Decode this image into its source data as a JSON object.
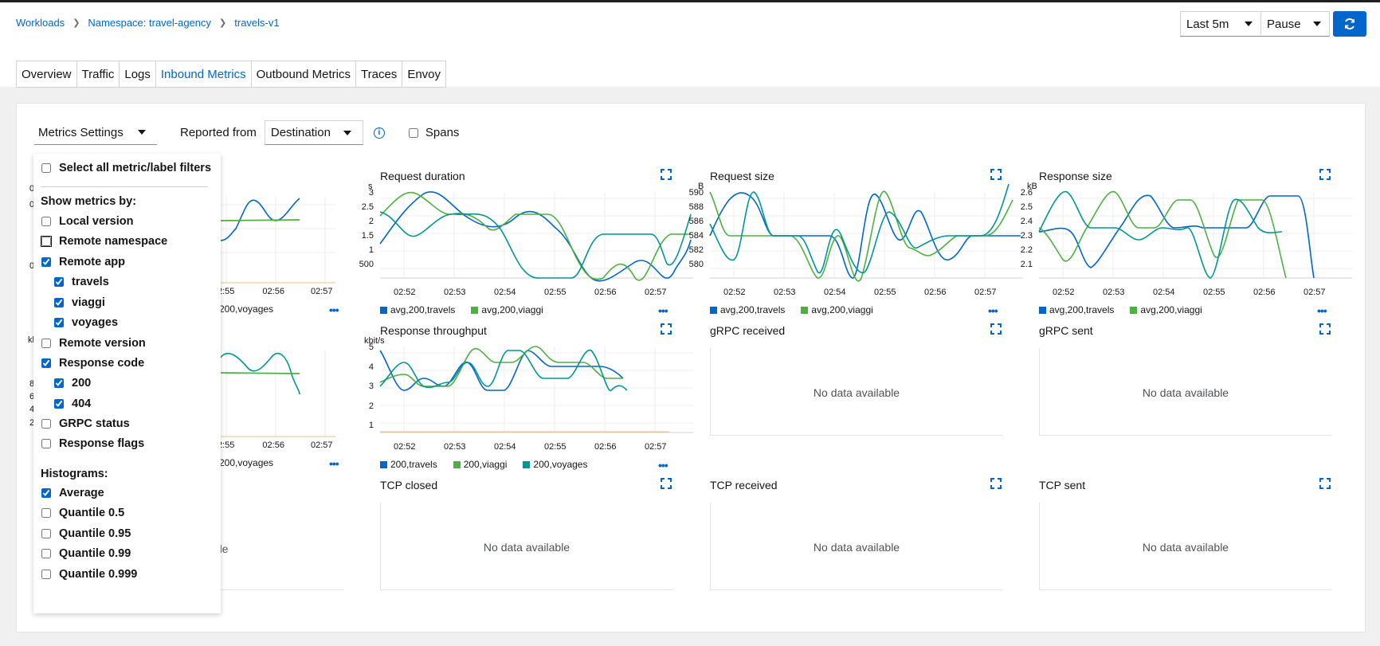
{
  "breadcrumb": [
    "Workloads",
    "Namespace: travel-agency",
    "travels-v1"
  ],
  "controls": {
    "interval": "Last 5m",
    "refresh": "Pause"
  },
  "tabs": [
    "Overview",
    "Traffic",
    "Logs",
    "Inbound Metrics",
    "Outbound Metrics",
    "Traces",
    "Envoy"
  ],
  "toolbar": {
    "metrics_settings": "Metrics Settings",
    "reported_from_label": "Reported from",
    "reported_from_value": "Destination",
    "spans_label": "Spans"
  },
  "dropdown": {
    "select_all": "Select all metric/label filters",
    "show_by": "Show metrics by:",
    "local_version": "Local version",
    "remote_namespace": "Remote namespace",
    "remote_app": "Remote app",
    "apps": [
      "travels",
      "viaggi",
      "voyages"
    ],
    "remote_version": "Remote version",
    "response_code": "Response code",
    "codes": [
      "200",
      "404"
    ],
    "grpc_status": "GRPC status",
    "response_flags": "Response flags",
    "histograms": "Histograms:",
    "average": "Average",
    "quantiles": [
      "Quantile 0.5",
      "Quantile 0.95",
      "Quantile 0.99",
      "Quantile 0.999"
    ]
  },
  "colors": {
    "travels": "#0066cc",
    "viaggi": "#4cb140",
    "voyages": "#009596",
    "other": "#ec7a08"
  },
  "charts": {
    "request_duration": {
      "title": "Request duration",
      "unit": "s",
      "yticks": [
        "3",
        "2.5",
        "2",
        "1.5",
        "1",
        "500"
      ],
      "legend": [
        "avg,200,travels",
        "avg,200,viaggi"
      ]
    },
    "request_size": {
      "title": "Request size",
      "unit": "B",
      "yticks": [
        "590",
        "588",
        "586",
        "584",
        "582",
        "580"
      ],
      "legend": [
        "avg,200,travels",
        "avg,200,viaggi"
      ]
    },
    "response_size": {
      "title": "Response size",
      "unit": "kB",
      "yticks": [
        "2.6",
        "2.5",
        "2.4",
        "2.3",
        "2.2",
        "2.1"
      ],
      "legend": [
        "avg,200,travels",
        "avg,200,viaggi"
      ]
    },
    "response_throughput": {
      "title": "Response throughput",
      "unit": "kbit/s",
      "yticks": [
        "5",
        "4",
        "3",
        "2",
        "1"
      ],
      "legend": [
        "200,travels",
        "200,viaggi",
        "200,voyages"
      ]
    },
    "partial_legend": "200,voyages",
    "grpc_received": "gRPC received",
    "grpc_sent": "gRPC sent",
    "tcp_closed": "TCP closed",
    "tcp_received": "TCP received",
    "tcp_sent": "TCP sent",
    "no_data": "No data available",
    "partial_nodata": "able",
    "partial_units": [
      "0",
      "0",
      "0",
      "kb",
      "8",
      "6",
      "4",
      "2"
    ]
  },
  "xticks": [
    "02:52",
    "02:53",
    "02:54",
    "02:55",
    "02:56",
    "02:57"
  ],
  "partial_xticks": [
    "2:55",
    "02:56",
    "02:57"
  ]
}
